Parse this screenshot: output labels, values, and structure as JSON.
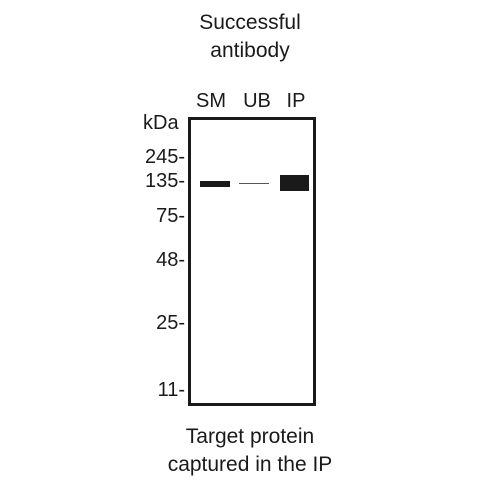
{
  "title": {
    "line1": "Successful",
    "line2": "antibody"
  },
  "lanes": [
    {
      "label": "SM",
      "band_intensity": "strong"
    },
    {
      "label": "UB",
      "band_intensity": "faint"
    },
    {
      "label": "IP",
      "band_intensity": "very strong"
    }
  ],
  "unit": "kDa",
  "markers": [
    "245-",
    "135-",
    "75-",
    "48-",
    "25-",
    "11-"
  ],
  "caption": {
    "line1": "Target protein",
    "line2": "captured in the IP"
  }
}
